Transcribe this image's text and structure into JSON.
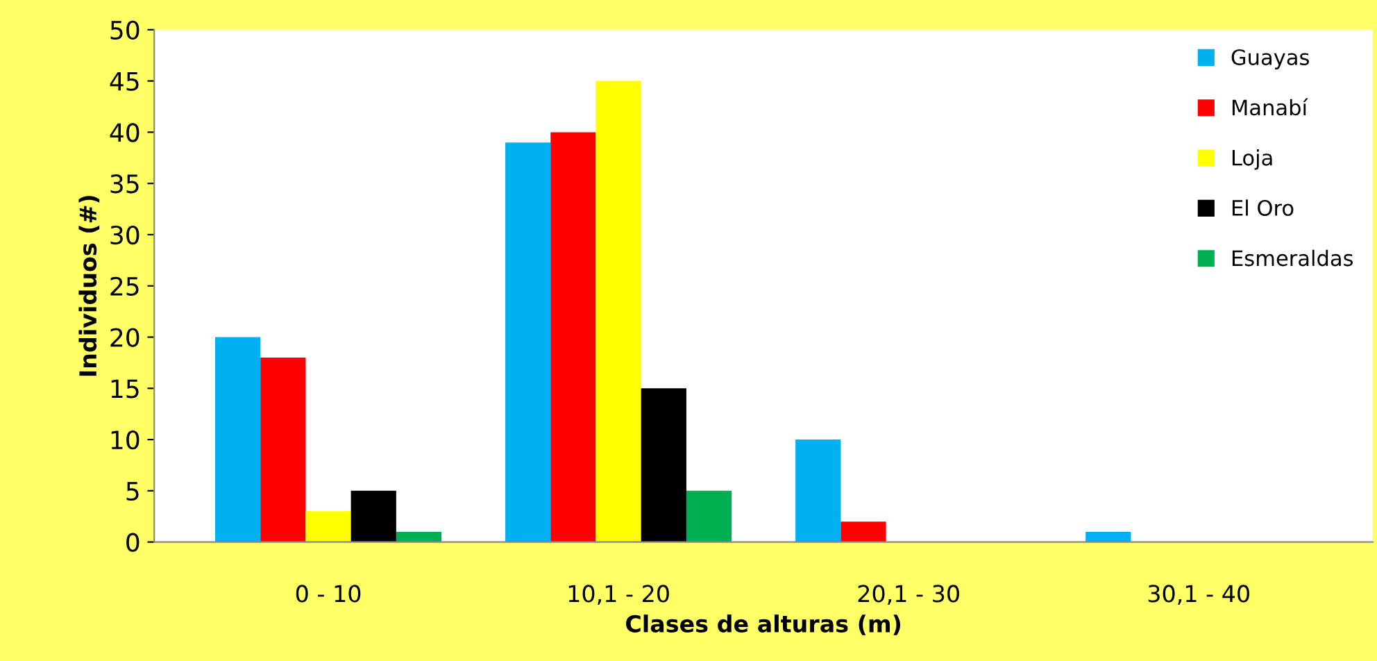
{
  "chart_data": {
    "type": "bar",
    "xlabel": "Clases de alturas (m)",
    "ylabel": "Individuos (#)",
    "categories": [
      "0 - 10",
      "10,1 - 20",
      "20,1 - 30",
      "30,1 - 40"
    ],
    "series": [
      {
        "name": "Guayas",
        "color": "#00b0f0",
        "values": [
          20,
          39,
          10,
          1
        ]
      },
      {
        "name": "Manabí",
        "color": "#ff0000",
        "values": [
          18,
          40,
          2,
          0
        ]
      },
      {
        "name": "Loja",
        "color": "#ffff00",
        "values": [
          3,
          45,
          0,
          0
        ]
      },
      {
        "name": "El Oro",
        "color": "#000000",
        "values": [
          5,
          15,
          0,
          0
        ]
      },
      {
        "name": "Esmeraldas",
        "color": "#00b050",
        "values": [
          1,
          5,
          0,
          0
        ]
      }
    ],
    "ylim": [
      0,
      50
    ],
    "yticks": [
      0,
      5,
      10,
      15,
      20,
      25,
      30,
      35,
      40,
      45,
      50
    ],
    "grid": false,
    "legend": "top right"
  }
}
